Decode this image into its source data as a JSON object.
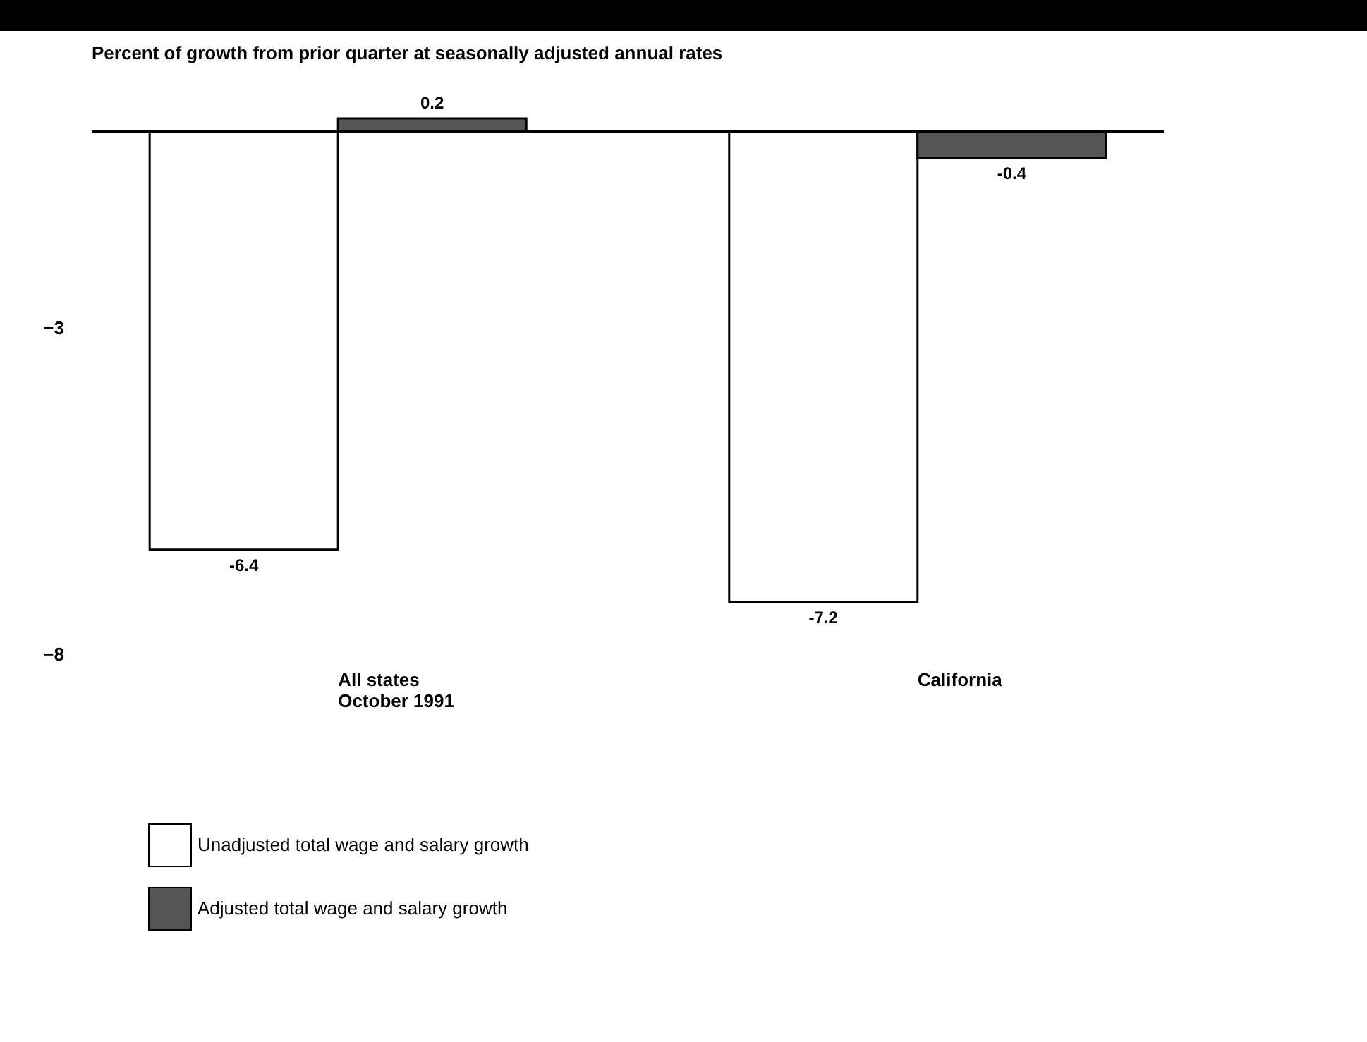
{
  "chart_data": {
    "type": "bar",
    "title": "Percent of growth from prior quarter at seasonally adjusted annual rates",
    "categories": [
      "All states\nOctober 1991",
      "California"
    ],
    "series": [
      {
        "name": "Unadjusted total wage and salary growth",
        "color": "#ffffff",
        "values": [
          -6.4,
          -7.2
        ]
      },
      {
        "name": "Adjusted total wage and salary growth",
        "color": "#555555",
        "values": [
          0.2,
          -0.4
        ]
      }
    ],
    "ylim": [
      -8,
      0.2
    ],
    "yticks": [
      -3,
      -8
    ],
    "grid": false,
    "legend": "bottom left",
    "data_labels": true,
    "ref_lines": [
      {
        "axis": "y",
        "value": 0,
        "color": "#000000"
      }
    ]
  }
}
